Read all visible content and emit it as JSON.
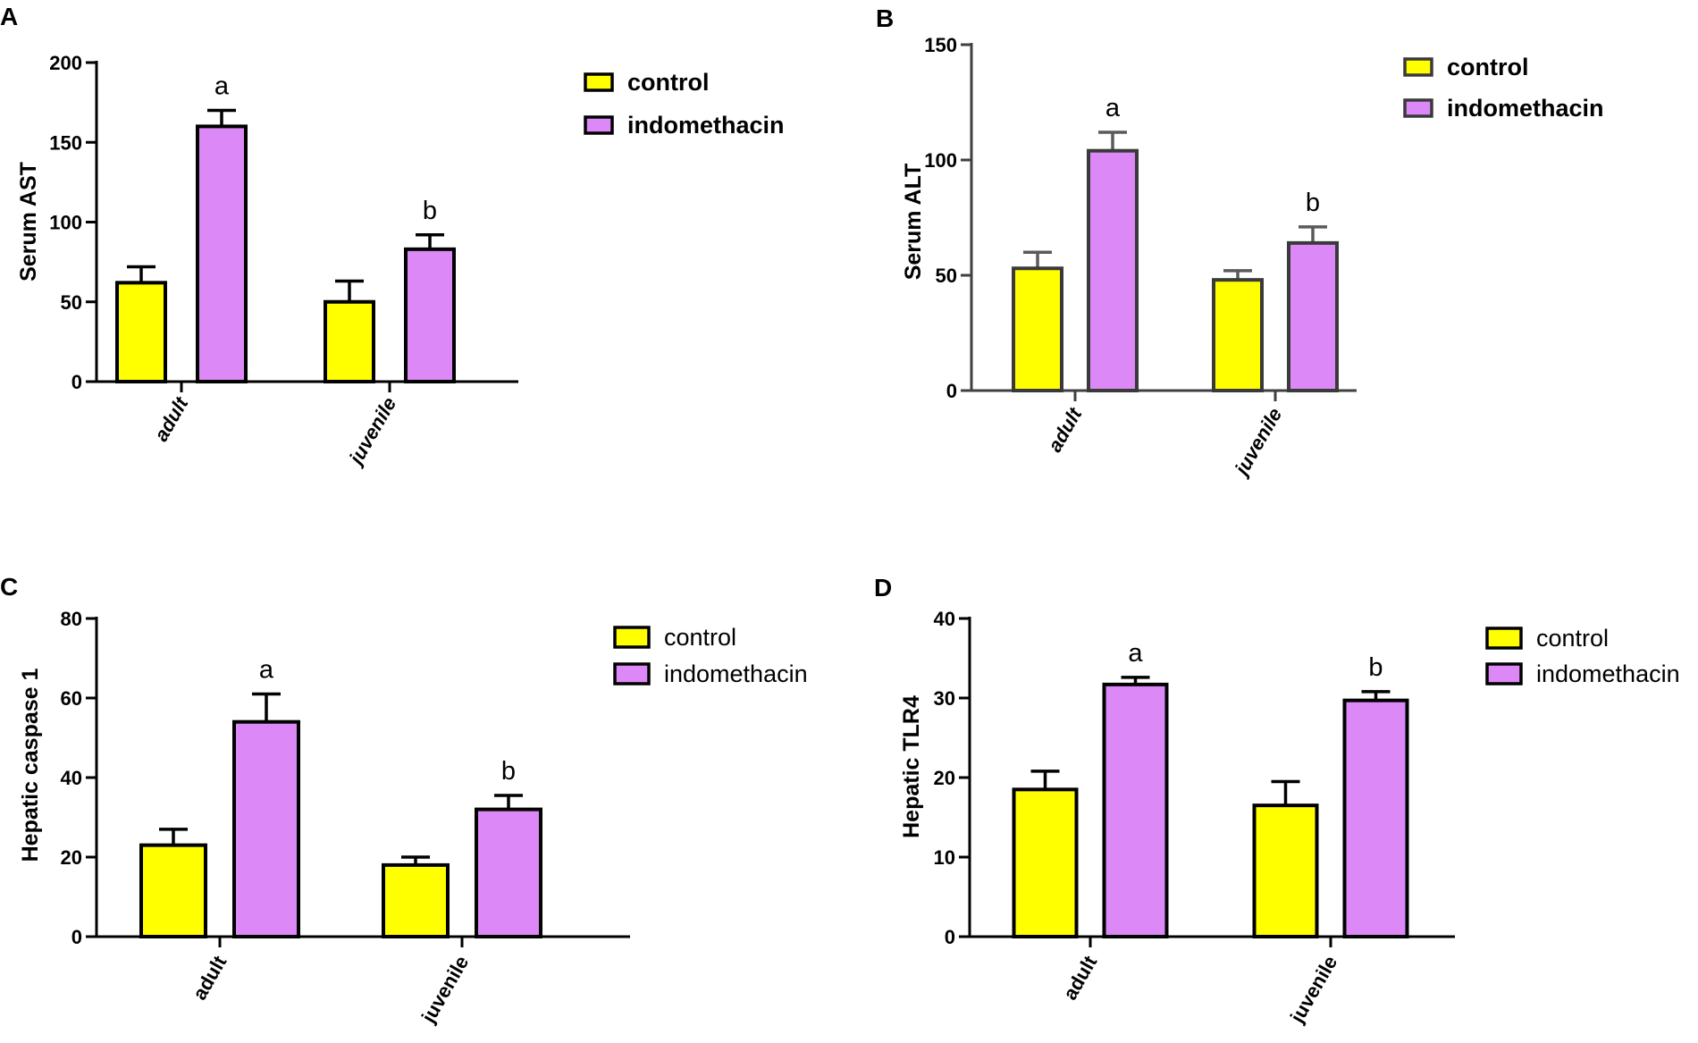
{
  "colors": {
    "control": "#ffff00",
    "indomethacin": "#dd88f7",
    "axis": "#000000"
  },
  "legend": {
    "series": [
      "control",
      "indomethacin"
    ],
    "placement": "top-right"
  },
  "chart_data": [
    {
      "panel": "A",
      "type": "bar",
      "categories": [
        "adult",
        "juvenile"
      ],
      "series": [
        {
          "name": "control",
          "values": [
            62,
            50
          ],
          "errors": [
            10,
            13
          ]
        },
        {
          "name": "indomethacin",
          "values": [
            160,
            83
          ],
          "errors": [
            10,
            9
          ]
        }
      ],
      "annotations": [
        "a",
        "b"
      ],
      "ylabel": "Serum AST",
      "xlabel": "",
      "ylim": [
        0,
        200
      ],
      "yticks": [
        0,
        50,
        100,
        150,
        200
      ],
      "style": {
        "italic_categories": true,
        "bold_legend": true,
        "gray_axes": false
      }
    },
    {
      "panel": "B",
      "type": "bar",
      "categories": [
        "adult",
        "juvenile"
      ],
      "series": [
        {
          "name": "control",
          "values": [
            53,
            48
          ],
          "errors": [
            7,
            4
          ]
        },
        {
          "name": "indomethacin",
          "values": [
            104,
            64
          ],
          "errors": [
            8,
            7
          ]
        }
      ],
      "annotations": [
        "a",
        "b"
      ],
      "ylabel": "Serum ALT",
      "xlabel": "",
      "ylim": [
        0,
        150
      ],
      "yticks": [
        0,
        50,
        100,
        150
      ],
      "style": {
        "italic_categories": true,
        "bold_legend": true,
        "gray_axes": true
      }
    },
    {
      "panel": "C",
      "type": "bar",
      "categories": [
        "adult",
        "juvenile"
      ],
      "series": [
        {
          "name": "control",
          "values": [
            23,
            18
          ],
          "errors": [
            4,
            2
          ]
        },
        {
          "name": "indomethacin",
          "values": [
            54,
            32
          ],
          "errors": [
            7,
            3.5
          ]
        }
      ],
      "annotations": [
        "a",
        "b"
      ],
      "ylabel": "Hepatic caspase 1",
      "xlabel": "",
      "ylim": [
        0,
        80
      ],
      "yticks": [
        0,
        20,
        40,
        60,
        80
      ],
      "style": {
        "italic_categories": false,
        "bold_legend": false,
        "gray_axes": false
      }
    },
    {
      "panel": "D",
      "type": "bar",
      "categories": [
        "adult",
        "juvenile"
      ],
      "series": [
        {
          "name": "control",
          "values": [
            18.5,
            16.5
          ],
          "errors": [
            2.3,
            3
          ]
        },
        {
          "name": "indomethacin",
          "values": [
            31.7,
            29.7
          ],
          "errors": [
            0.9,
            1.1
          ]
        }
      ],
      "annotations": [
        "a",
        "b"
      ],
      "ylabel": "Hepatic TLR4",
      "xlabel": "",
      "ylim": [
        0,
        40
      ],
      "yticks": [
        0,
        10,
        20,
        30,
        40
      ],
      "style": {
        "italic_categories": false,
        "bold_legend": false,
        "gray_axes": false
      }
    }
  ]
}
